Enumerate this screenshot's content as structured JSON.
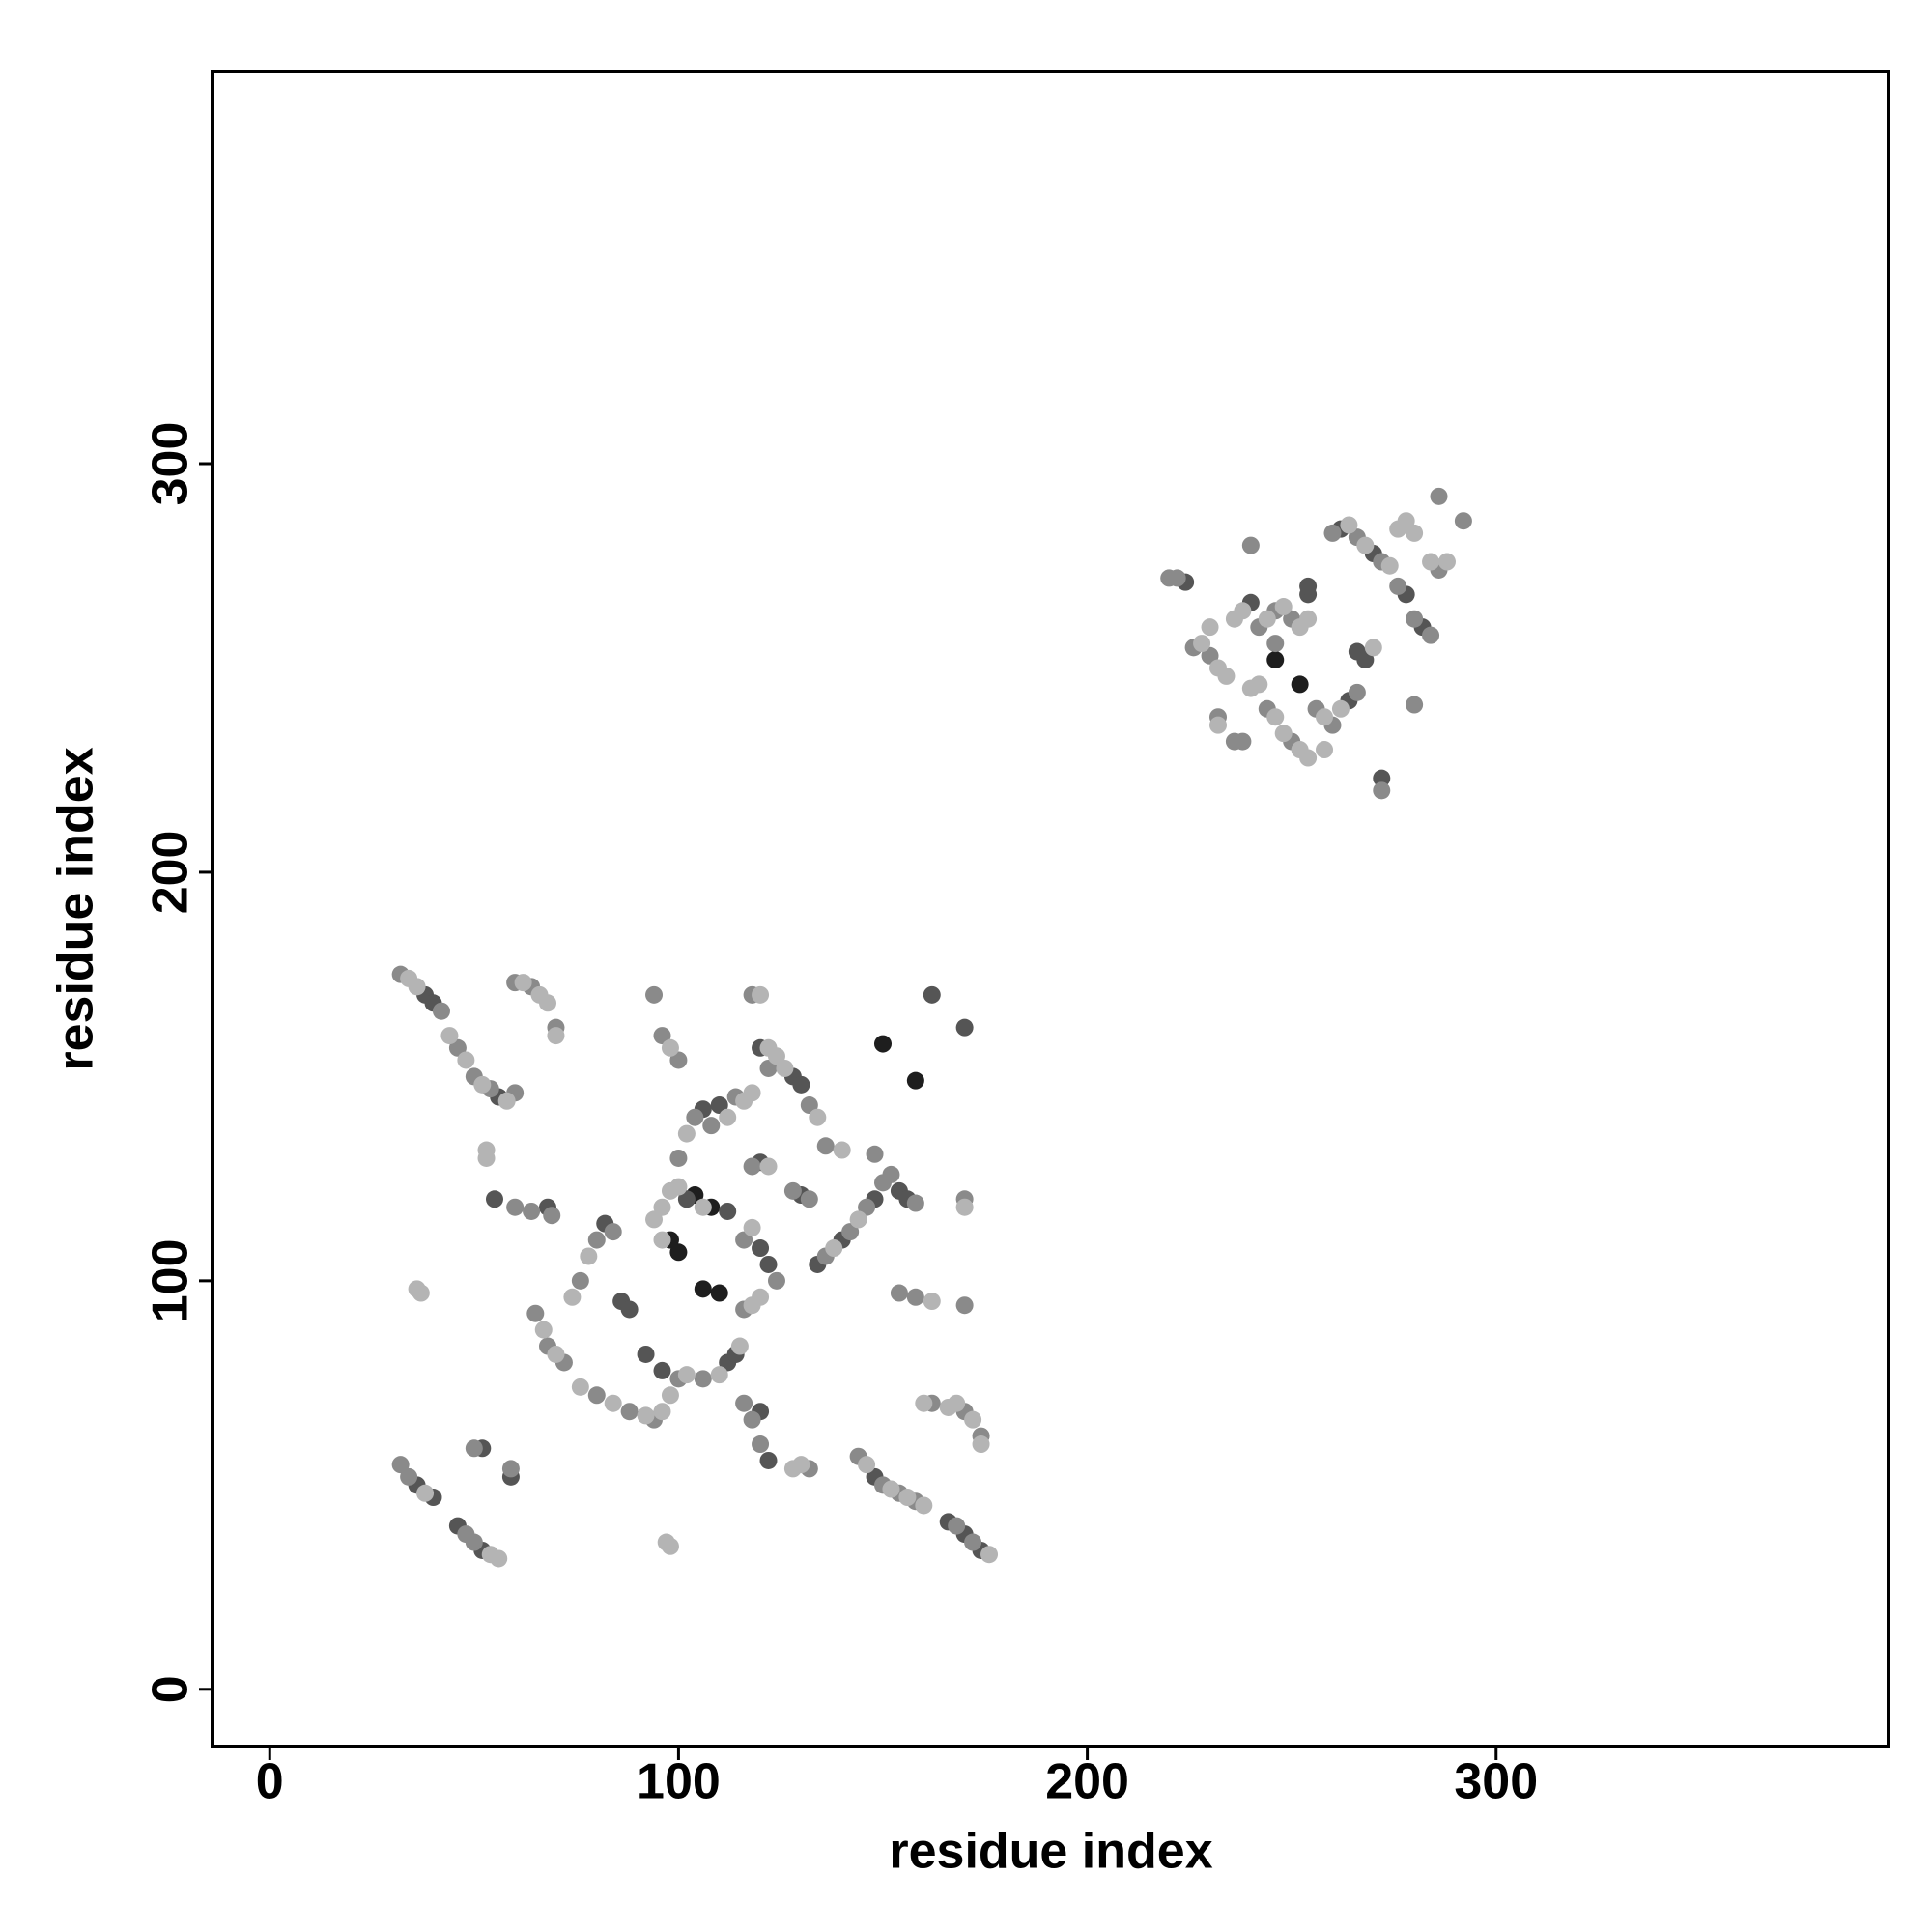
{
  "chart_data": {
    "type": "scatter",
    "x_label": "residue index",
    "y_label": "residue index",
    "xlim": [
      -14,
      396
    ],
    "ylim": [
      -14,
      396
    ],
    "xticks": [
      0,
      100,
      200,
      300
    ],
    "yticks": [
      0,
      100,
      200,
      300
    ],
    "series": [
      {
        "color": "#1e1e1e",
        "x": [
          106,
          110,
          98,
          100,
          150,
          158,
          246,
          252,
          104,
          108
        ],
        "y": [
          98,
          97,
          110,
          107,
          158,
          149,
          252,
          246,
          121,
          118
        ]
      },
      {
        "color": "#555555",
        "x": [
          38,
          40,
          56,
          36,
          40,
          46,
          52,
          52,
          59,
          55,
          68,
          82,
          86,
          88,
          92,
          96,
          112,
          114,
          102,
          112,
          120,
          122,
          106,
          110,
          120,
          128,
          130,
          120,
          130,
          134,
          148,
          154,
          156,
          140,
          162,
          170,
          166,
          170,
          174,
          122,
          120,
          148,
          254,
          254,
          262,
          270,
          266,
          268,
          272,
          278,
          282,
          224,
          264,
          240
        ],
        "y": [
          170,
          168,
          145,
          50,
          47,
          40,
          34,
          59,
          52,
          120,
          118,
          114,
          95,
          93,
          82,
          78,
          80,
          82,
          120,
          117,
          108,
          104,
          142,
          143,
          157,
          150,
          148,
          129,
          121,
          104,
          120,
          122,
          120,
          110,
          170,
          162,
          41,
          38,
          34,
          56,
          68,
          52,
          268,
          270,
          284,
          278,
          254,
          252,
          223,
          268,
          260,
          271,
          242,
          266
        ]
      },
      {
        "color": "#8a8a8a",
        "x": [
          32,
          42,
          46,
          50,
          54,
          60,
          60,
          64,
          70,
          32,
          34,
          48,
          50,
          50,
          59,
          60,
          64,
          69,
          65,
          68,
          72,
          76,
          80,
          84,
          80,
          88,
          94,
          100,
          106,
          116,
          124,
          116,
          100,
          104,
          108,
          114,
          122,
          132,
          94,
          96,
          100,
          118,
          118,
          128,
          132,
          136,
          142,
          146,
          150,
          152,
          158,
          136,
          148,
          170,
          170,
          154,
          158,
          144,
          150,
          154,
          158,
          168,
          172,
          170,
          174,
          162,
          116,
          118,
          120,
          132,
          220,
          222,
          226,
          230,
          232,
          236,
          238,
          242,
          246,
          250,
          240,
          244,
          250,
          256,
          260,
          266,
          260,
          266,
          272,
          276,
          280,
          284,
          286,
          286,
          292,
          272,
          280,
          246
        ],
        "y": [
          175,
          166,
          157,
          150,
          147,
          146,
          173,
          172,
          162,
          55,
          52,
          38,
          36,
          59,
          54,
          118,
          117,
          116,
          92,
          84,
          80,
          100,
          110,
          112,
          72,
          68,
          66,
          76,
          76,
          93,
          100,
          110,
          130,
          140,
          138,
          145,
          152,
          143,
          170,
          160,
          154,
          170,
          128,
          122,
          120,
          106,
          112,
          118,
          124,
          126,
          119,
          133,
          131,
          120,
          94,
          97,
          96,
          57,
          50,
          48,
          46,
          40,
          36,
          68,
          62,
          70,
          70,
          66,
          60,
          54,
          272,
          272,
          255,
          253,
          238,
          232,
          232,
          260,
          264,
          262,
          280,
          240,
          232,
          240,
          236,
          244,
          283,
          282,
          276,
          270,
          262,
          258,
          274,
          292,
          286,
          220,
          241,
          256
        ]
      },
      {
        "color": "#b4b4b4",
        "x": [
          34,
          36,
          44,
          48,
          52,
          58,
          62,
          66,
          68,
          70,
          38,
          54,
          56,
          36,
          37,
          97,
          98,
          53,
          53,
          67,
          70,
          74,
          78,
          76,
          84,
          92,
          96,
          98,
          102,
          110,
          115,
          94,
          96,
          98,
          100,
          106,
          96,
          118,
          120,
          118,
          102,
          112,
          116,
          118,
          124,
          126,
          134,
          122,
          98,
          120,
          122,
          138,
          144,
          140,
          170,
          162,
          146,
          152,
          156,
          160,
          176,
          166,
          168,
          172,
          174,
          160,
          128,
          130,
          228,
          232,
          234,
          230,
          232,
          240,
          242,
          236,
          238,
          244,
          248,
          252,
          254,
          246,
          248,
          252,
          254,
          258,
          262,
          264,
          268,
          274,
          276,
          278,
          280,
          284,
          288,
          270,
          258
        ],
        "y": [
          174,
          172,
          160,
          154,
          148,
          144,
          173,
          170,
          168,
          160,
          48,
          33,
          32,
          98,
          97,
          36,
          35,
          130,
          132,
          88,
          82,
          96,
          106,
          74,
          70,
          67,
          68,
          72,
          77,
          77,
          84,
          115,
          118,
          122,
          123,
          118,
          110,
          94,
          96,
          113,
          136,
          140,
          144,
          146,
          155,
          152,
          140,
          157,
          157,
          170,
          128,
          108,
          115,
          132,
          118,
          95,
          55,
          49,
          47,
          45,
          33,
          69,
          70,
          66,
          60,
          70,
          54,
          55,
          256,
          250,
          248,
          260,
          236,
          245,
          246,
          262,
          264,
          262,
          265,
          260,
          262,
          238,
          234,
          230,
          228,
          238,
          240,
          285,
          280,
          275,
          284,
          286,
          283,
          276,
          276,
          255,
          230
        ]
      }
    ]
  }
}
